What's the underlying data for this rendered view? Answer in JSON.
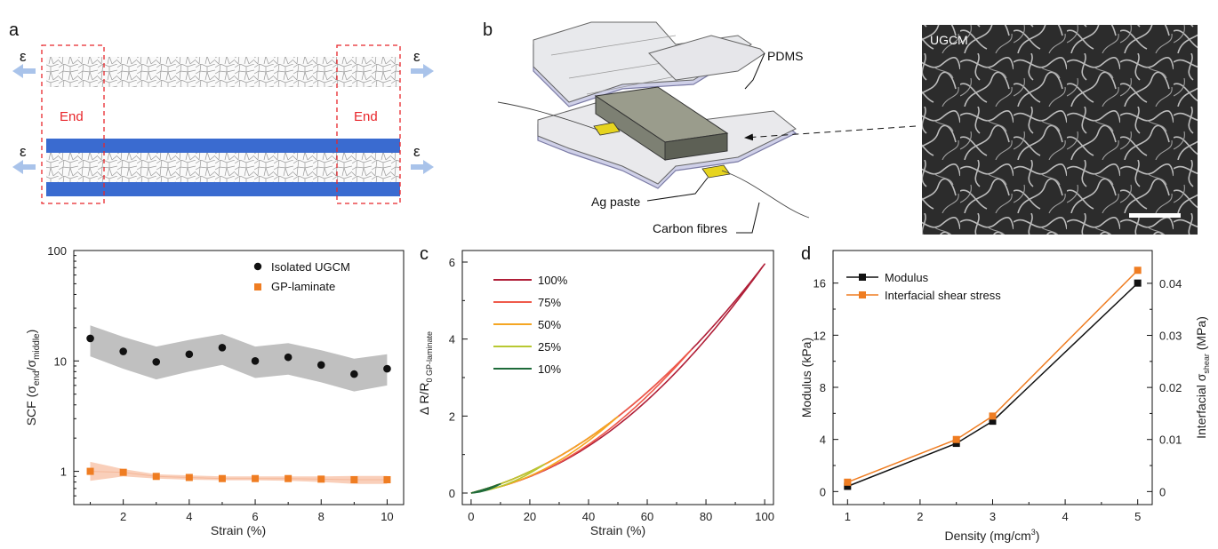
{
  "panel_a": {
    "letter": "a",
    "strain_symbol": "ε",
    "end_left": "End",
    "end_right": "End"
  },
  "panel_b": {
    "letter": "b",
    "labels": {
      "pdms": "PDMS",
      "ag_paste": "Ag paste",
      "carbon_fibres": "Carbon fibres",
      "sem": "UGCM"
    }
  },
  "colors": {
    "black_series": "#111111",
    "orange_series": "#ef7d22",
    "end_box": "#e8262b",
    "blue_layer": "#3a6bd0",
    "arrow": "#a9c3ea"
  },
  "chart_data": [
    {
      "id": "scf",
      "type": "scatter",
      "xlabel": "Strain (%)",
      "ylabel_main": "SCF (σ",
      "ylabel_sub1": "end",
      "ylabel_mid": "/σ",
      "ylabel_sub2": "middle",
      "ylabel_end": ")",
      "xlim": [
        0.5,
        10.5
      ],
      "ylim": [
        0.5,
        100
      ],
      "yscale": "log",
      "xticks": [
        2,
        4,
        6,
        8,
        10
      ],
      "yticks": [
        1,
        10,
        100
      ],
      "series": [
        {
          "name": "Isolated UGCM",
          "x": [
            1,
            2,
            3,
            4,
            5,
            6,
            7,
            8,
            9,
            10
          ],
          "y": [
            16,
            12.2,
            9.8,
            11.5,
            13.2,
            10,
            10.8,
            9.2,
            7.6,
            8.5
          ],
          "band_lo": [
            11,
            8.5,
            6.8,
            8,
            9.2,
            7,
            7.5,
            6.4,
            5.3,
            6
          ],
          "band_hi": [
            21,
            16.5,
            13.5,
            15.5,
            17.5,
            13.5,
            14.5,
            12.5,
            10.5,
            11.5
          ]
        },
        {
          "name": "GP-laminate",
          "x": [
            1,
            2,
            3,
            4,
            5,
            6,
            7,
            8,
            9,
            10
          ],
          "y": [
            1.0,
            0.98,
            0.9,
            0.88,
            0.86,
            0.86,
            0.86,
            0.85,
            0.84,
            0.84
          ],
          "band_lo": [
            0.82,
            0.9,
            0.86,
            0.84,
            0.83,
            0.83,
            0.82,
            0.8,
            0.77,
            0.77
          ],
          "band_hi": [
            1.22,
            1.05,
            0.94,
            0.92,
            0.9,
            0.9,
            0.9,
            0.9,
            0.91,
            0.91
          ]
        }
      ]
    },
    {
      "id": "c",
      "letter": "c",
      "type": "line",
      "xlabel": "Strain (%)",
      "ylabel_main": "Δ R/R",
      "ylabel_sub": "0 GP-laminate",
      "xlim": [
        -3,
        103
      ],
      "ylim": [
        -0.3,
        6.3
      ],
      "xticks": [
        0,
        20,
        40,
        60,
        80,
        100
      ],
      "yticks": [
        0,
        2,
        4,
        6
      ],
      "series": [
        {
          "name": "100%",
          "color": "#b01f38",
          "max": 100
        },
        {
          "name": "75%",
          "color": "#ef5a4b",
          "max": 75
        },
        {
          "name": "50%",
          "color": "#f5a623",
          "max": 50
        },
        {
          "name": "25%",
          "color": "#b8c832",
          "max": 25
        },
        {
          "name": "10%",
          "color": "#1e6b3a",
          "max": 10
        }
      ]
    },
    {
      "id": "d",
      "letter": "d",
      "type": "line",
      "xlabel": "Density (mg/cm",
      "xlabel_sup": "3",
      "xlabel_end": ")",
      "ylabel_left": "Modulus (kPa)",
      "ylabel_right_main": "Interfacial σ",
      "ylabel_right_sub": "shear",
      "ylabel_right_end": " (MPa)",
      "xlim": [
        0.8,
        5.2
      ],
      "ylim_left": [
        -1,
        18.5
      ],
      "ylim_right": [
        -0.0025,
        0.0463
      ],
      "xticks": [
        1,
        2,
        3,
        4,
        5
      ],
      "yticks_left": [
        0,
        4,
        8,
        12,
        16
      ],
      "yticks_right": [
        0,
        0.01,
        0.02,
        0.03,
        0.04
      ],
      "yticks_right_labels": [
        "0",
        "0.01",
        "0.02",
        "0.03",
        "0.04"
      ],
      "series": [
        {
          "name": "Modulus",
          "axis": "left",
          "x": [
            1,
            2.5,
            3,
            5
          ],
          "y": [
            0.4,
            3.7,
            5.4,
            16.0
          ]
        },
        {
          "name": "Interfacial shear stress",
          "axis": "right",
          "x": [
            1,
            2.5,
            3,
            5
          ],
          "y": [
            0.0018,
            0.01,
            0.0145,
            0.0425
          ]
        }
      ]
    }
  ]
}
